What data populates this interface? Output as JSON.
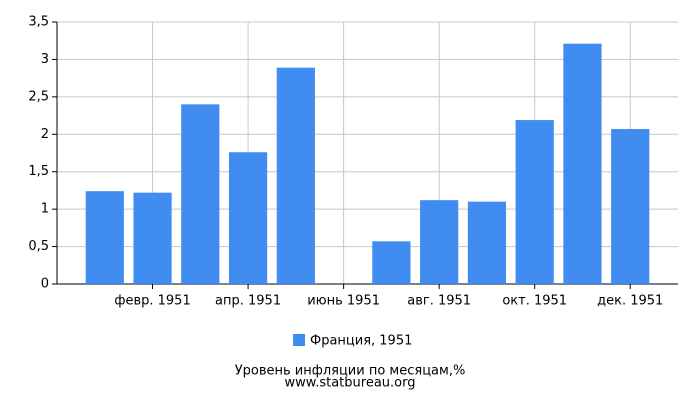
{
  "chart_data": {
    "type": "bar",
    "categories": [
      null,
      "февр. 1951",
      null,
      "апр. 1951",
      null,
      "июнь 1951",
      null,
      "авг. 1951",
      null,
      "окт. 1951",
      null,
      "дек. 1951"
    ],
    "series": [
      {
        "name": "Франция, 1951",
        "color": "#418cf0",
        "values": [
          1.24,
          1.22,
          2.4,
          1.76,
          2.89,
          null,
          0.57,
          1.12,
          1.1,
          2.19,
          3.21,
          2.07
        ]
      }
    ],
    "ylim": [
      0,
      3.5
    ],
    "yticks": [
      {
        "value": 0,
        "label": "0"
      },
      {
        "value": 0.5,
        "label": "0,5"
      },
      {
        "value": 1,
        "label": "1"
      },
      {
        "value": 1.5,
        "label": "1,5"
      },
      {
        "value": 2,
        "label": "2"
      },
      {
        "value": 2.5,
        "label": "2,5"
      },
      {
        "value": 3,
        "label": "3"
      },
      {
        "value": 3.5,
        "label": "3,5"
      }
    ],
    "grid": true,
    "title": "Уровень инфляции по месяцам,%",
    "source": "www.statbureau.org"
  }
}
